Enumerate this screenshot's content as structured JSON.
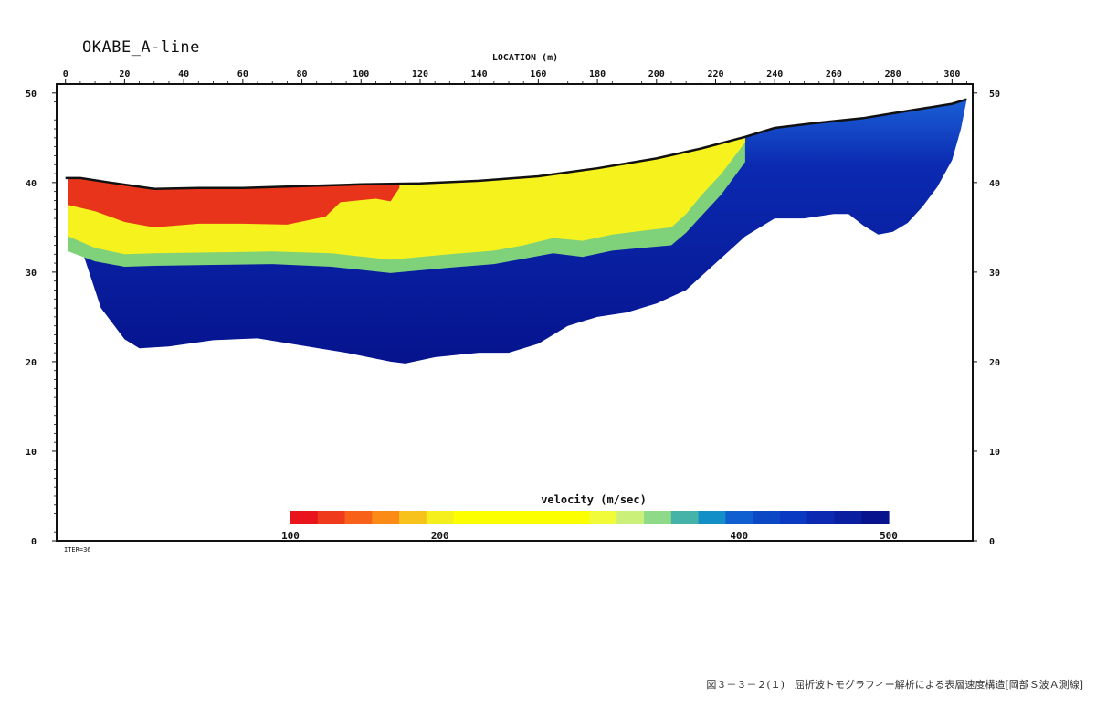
{
  "chart_data": {
    "type": "heatmap",
    "title": "OKABE_A-line",
    "xlabel": "LOCATION (m)",
    "ylabel": "",
    "xlim": [
      -3,
      307
    ],
    "ylim": [
      0,
      51
    ],
    "x_ticks": [
      0,
      20,
      40,
      60,
      80,
      100,
      120,
      140,
      160,
      180,
      200,
      220,
      240,
      260,
      280,
      300
    ],
    "y_ticks": [
      0,
      10,
      20,
      30,
      40,
      50
    ],
    "surface_line": {
      "x": [
        0,
        5,
        15,
        30,
        45,
        60,
        80,
        100,
        120,
        140,
        160,
        180,
        200,
        215,
        230,
        240,
        255,
        270,
        285,
        300,
        305
      ],
      "y": [
        40.5,
        40.5,
        40.0,
        39.3,
        39.4,
        39.4,
        39.6,
        39.8,
        39.9,
        40.2,
        40.7,
        41.6,
        42.7,
        43.8,
        45.1,
        46.1,
        46.7,
        47.2,
        48.0,
        48.8,
        49.3
      ]
    },
    "layers": [
      {
        "velocity_range": "100-180 m/sec",
        "x": [
          1,
          10,
          20,
          30,
          45,
          60,
          75,
          88,
          93,
          105,
          110,
          113
        ],
        "bottom": [
          37.5,
          36.8,
          35.6,
          35.0,
          35.4,
          35.4,
          35.3,
          36.2,
          37.8,
          38.2,
          37.9,
          39.4
        ]
      },
      {
        "velocity_range": "180-330 m/sec",
        "x": [
          1,
          10,
          20,
          30,
          50,
          70,
          90,
          110,
          130,
          145,
          155,
          165,
          175,
          185,
          195,
          205,
          210,
          215,
          222,
          230
        ],
        "bottom": [
          34.0,
          32.7,
          32.0,
          32.1,
          32.2,
          32.3,
          32.1,
          31.4,
          32.0,
          32.4,
          33.0,
          33.8,
          33.5,
          34.2,
          34.6,
          35.0,
          36.5,
          38.5,
          41.0,
          44.5
        ]
      },
      {
        "velocity_range": "330-380 m/sec",
        "x": [
          1,
          10,
          20,
          30,
          50,
          70,
          90,
          110,
          130,
          145,
          155,
          165,
          175,
          185,
          195,
          205,
          210,
          215,
          222,
          230
        ],
        "bottom": [
          32.3,
          31.2,
          30.6,
          30.7,
          30.8,
          30.9,
          30.6,
          29.9,
          30.5,
          30.9,
          31.5,
          32.1,
          31.7,
          32.4,
          32.7,
          33.0,
          34.4,
          36.2,
          38.7,
          42.3
        ]
      },
      {
        "velocity_range": "380-500 m/sec",
        "x": [
          1,
          5,
          12,
          20,
          25,
          35,
          50,
          65,
          80,
          95,
          110,
          115,
          125,
          140,
          150,
          160,
          170,
          180,
          190,
          200,
          210,
          220,
          230,
          240,
          250,
          260,
          265,
          270,
          275,
          280,
          285,
          290,
          295,
          300,
          303,
          305
        ],
        "bottom": [
          40.5,
          33.0,
          26.0,
          22.5,
          21.5,
          21.7,
          22.4,
          22.6,
          21.8,
          21.0,
          20.0,
          19.8,
          20.5,
          21.0,
          21.0,
          22.0,
          24.0,
          25.0,
          25.5,
          26.5,
          28.0,
          31.0,
          34.0,
          36.0,
          36.0,
          36.5,
          36.5,
          35.2,
          34.2,
          34.5,
          35.5,
          37.3,
          39.5,
          42.5,
          46.0,
          49.3
        ]
      }
    ],
    "colorbar": {
      "label": "velocity (m/sec)",
      "tick_labels": [
        "100",
        "200",
        "400",
        "500"
      ],
      "colors": [
        "#e8151c",
        "#f03a1c",
        "#f86218",
        "#fb8a16",
        "#f8c21c",
        "#f6ef1e",
        "#fbff00",
        "#fbff00",
        "#fbff00",
        "#fbff00",
        "#fbff00",
        "#f1fb3a",
        "#cbf07a",
        "#8fda88",
        "#46b3a9",
        "#138fc7",
        "#0f5fd0",
        "#0c48c4",
        "#0a3ac2",
        "#0b2ab1",
        "#0a1f9f",
        "#06138d"
      ]
    }
  },
  "labels": {
    "iter": "ITER=36",
    "caption": "図３－３－２(１)　屈折波トモグラフィー解析による表層速度構造[岡部Ｓ波Ａ測線]"
  },
  "colors": {
    "layer_red": "#e8341a",
    "layer_yellow": "#f6f21e",
    "layer_green": "#7fd27a",
    "layer_blue_light": "#1a5fd6",
    "layer_blue_deep": "#06138d",
    "surface": "#111111"
  }
}
